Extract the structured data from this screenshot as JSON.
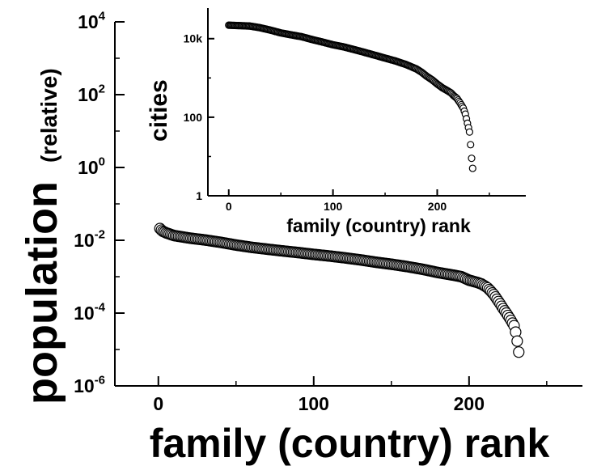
{
  "chart_data": [
    {
      "type": "scatter",
      "panel": "main",
      "xlabel": "family (country) rank",
      "ylabel": "population",
      "ylabel_suffix": "(relative)",
      "xlim": [
        -28,
        273
      ],
      "ylim": [
        1e-06,
        10000
      ],
      "yscale": "log",
      "grid": false,
      "marker": "open-circle",
      "x_ticks": [
        0,
        100,
        200
      ],
      "x_tick_labels": [
        "0",
        "100",
        "200"
      ],
      "y_ticks": [
        {
          "value": 10000,
          "base": "10",
          "exp": "4"
        },
        {
          "value": 100,
          "base": "10",
          "exp": "2"
        },
        {
          "value": 1,
          "base": "10",
          "exp": "0"
        },
        {
          "value": 0.01,
          "base": "10",
          "exp": "-2"
        },
        {
          "value": 0.0001,
          "base": "10",
          "exp": "-4"
        },
        {
          "value": 1e-06,
          "base": "10",
          "exp": "-6"
        }
      ],
      "series": [
        {
          "points": [
            [
              1,
              0.021
            ],
            [
              2,
              0.019
            ],
            [
              3,
              0.0175
            ],
            [
              4,
              0.0168
            ],
            [
              5,
              0.016
            ],
            [
              10,
              0.0135
            ],
            [
              20,
              0.0115
            ],
            [
              30,
              0.0102
            ],
            [
              40,
              0.0088
            ],
            [
              50,
              0.0074
            ],
            [
              60,
              0.0064
            ],
            [
              70,
              0.0057
            ],
            [
              80,
              0.0051
            ],
            [
              90,
              0.0046
            ],
            [
              100,
              0.0041
            ],
            [
              110,
              0.0037
            ],
            [
              120,
              0.0033
            ],
            [
              130,
              0.0029
            ],
            [
              140,
              0.0025
            ],
            [
              150,
              0.0022
            ],
            [
              160,
              0.0019
            ],
            [
              170,
              0.0016
            ],
            [
              180,
              0.0013
            ],
            [
              190,
              0.0011
            ],
            [
              195,
              0.001
            ],
            [
              200,
              0.0008
            ],
            [
              205,
              0.0007
            ],
            [
              208,
              0.00063
            ],
            [
              210,
              0.00056
            ],
            [
              212,
              0.00049
            ],
            [
              214,
              0.0004
            ],
            [
              216,
              0.00032
            ],
            [
              218,
              0.00024
            ],
            [
              220,
              0.00018
            ],
            [
              222,
              0.000132
            ],
            [
              224,
              0.0001
            ],
            [
              226,
              7.4e-05
            ],
            [
              227,
              6.3e-05
            ],
            [
              228,
              5.3e-05
            ],
            [
              229,
              4.5e-05
            ],
            [
              230,
              3e-05
            ],
            [
              231,
              1.7e-05
            ],
            [
              232,
              8.5e-06
            ]
          ]
        }
      ]
    },
    {
      "type": "scatter",
      "panel": "inset",
      "xlabel": "family (country) rank",
      "ylabel": "cities",
      "xlim": [
        -20,
        285
      ],
      "ylim": [
        1,
        60000
      ],
      "yscale": "log",
      "grid": false,
      "marker": "open-circle",
      "x_ticks": [
        0,
        100,
        200
      ],
      "x_tick_labels": [
        "0",
        "100",
        "200"
      ],
      "y_ticks": [
        {
          "value": 10000,
          "label": "10k"
        },
        {
          "value": 100,
          "label": "100"
        },
        {
          "value": 1,
          "label": "1"
        }
      ],
      "series": [
        {
          "points": [
            [
              0,
              22000
            ],
            [
              10,
              21500
            ],
            [
              20,
              21000
            ],
            [
              30,
              19000
            ],
            [
              40,
              16500
            ],
            [
              50,
              14000
            ],
            [
              60,
              12500
            ],
            [
              70,
              11200
            ],
            [
              80,
              9500
            ],
            [
              90,
              8200
            ],
            [
              100,
              7000
            ],
            [
              110,
              6200
            ],
            [
              120,
              5300
            ],
            [
              130,
              4500
            ],
            [
              140,
              3800
            ],
            [
              150,
              3200
            ],
            [
              160,
              2700
            ],
            [
              170,
              2200
            ],
            [
              180,
              1700
            ],
            [
              185,
              1400
            ],
            [
              190,
              1100
            ],
            [
              195,
              900
            ],
            [
              200,
              700
            ],
            [
              205,
              560
            ],
            [
              210,
              470
            ],
            [
              213,
              420
            ],
            [
              216,
              350
            ],
            [
              219,
              300
            ],
            [
              222,
              230
            ],
            [
              225,
              170
            ],
            [
              227,
              120
            ],
            [
              229,
              70
            ],
            [
              231,
              42
            ],
            [
              232,
              20
            ],
            [
              233,
              9
            ],
            [
              234,
              5
            ]
          ]
        }
      ]
    }
  ]
}
